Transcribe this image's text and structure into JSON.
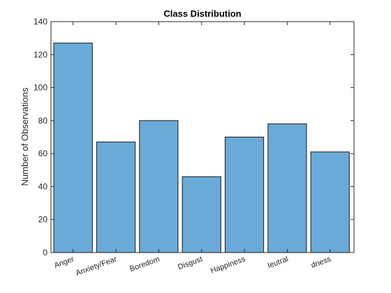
{
  "chart_data": {
    "type": "bar",
    "title": "Class Distribution",
    "xlabel": "",
    "ylabel": "Number of Observations",
    "categories": [
      "Anger",
      "Anxiety/Fear",
      "Boredom",
      "Disgust",
      "Happiness",
      "Neutral",
      "Sadness"
    ],
    "categories_visible_text": [
      "Anger",
      "Anxiety/Fear",
      "Boredom",
      "Disgust",
      "Happiness",
      "Ieutral",
      "dness"
    ],
    "values": [
      127,
      67,
      80,
      46,
      70,
      78,
      61
    ],
    "ylim": [
      0,
      140
    ],
    "yticks": [
      0,
      20,
      40,
      60,
      80,
      100,
      120,
      140
    ],
    "grid": false,
    "bar_color": "#6aa9d8"
  }
}
